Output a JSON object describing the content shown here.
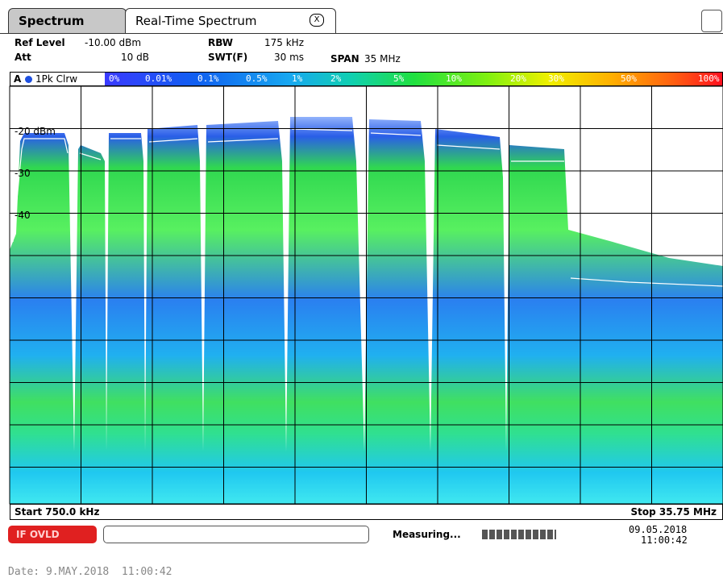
{
  "tabs": [
    "Spectrum",
    "Real-Time Spectrum"
  ],
  "tab_close": "X",
  "settings": {
    "ref_level_label": "Ref Level",
    "ref_level": "-10.00 dBm",
    "att_label": "Att",
    "att": "10 dB",
    "rbw_label": "RBW",
    "rbw": "175 kHz",
    "swt_label": "SWT(F)",
    "swt": "30 ms",
    "span_label": "SPAN",
    "span": "35 MHz"
  },
  "trace": {
    "id": "A",
    "label": "1Pk Clrw"
  },
  "color_scale": [
    "0%",
    "0.01%",
    "0.1%",
    "0.5%",
    "1%",
    "2%",
    "5%",
    "10%",
    "20%",
    "30%",
    "50%",
    "100%"
  ],
  "y_labels": [
    "-20 dBm",
    "-30",
    "-40"
  ],
  "start": "Start 750.0 kHz",
  "stop": "Stop 35.75 MHz",
  "status": {
    "overload": "IF OVLD",
    "state": "Measuring...",
    "date": "09.05.2018",
    "time": "11:00:42"
  },
  "footer": "Date: 9.MAY.2018  11:00:42"
}
